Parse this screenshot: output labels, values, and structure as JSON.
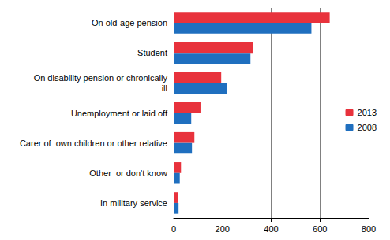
{
  "chart_data": {
    "type": "bar",
    "orientation": "horizontal",
    "categories": [
      "On old-age pension",
      "Student",
      "On disability pension or chronically\nill",
      "Unemployment or laid off",
      "Carer of  own children or other relative",
      "Other  or don't know",
      "In military service"
    ],
    "series": [
      {
        "name": "2013",
        "color": "#e8323c",
        "values": [
          640,
          325,
          195,
          110,
          85,
          30,
          18
        ]
      },
      {
        "name": "2008",
        "color": "#1f6fbf",
        "values": [
          565,
          315,
          220,
          72,
          75,
          25,
          20
        ]
      }
    ],
    "xlim": [
      0,
      800
    ],
    "xticks": [
      0,
      200,
      400,
      600,
      800
    ],
    "grid": true,
    "legend": "right"
  }
}
